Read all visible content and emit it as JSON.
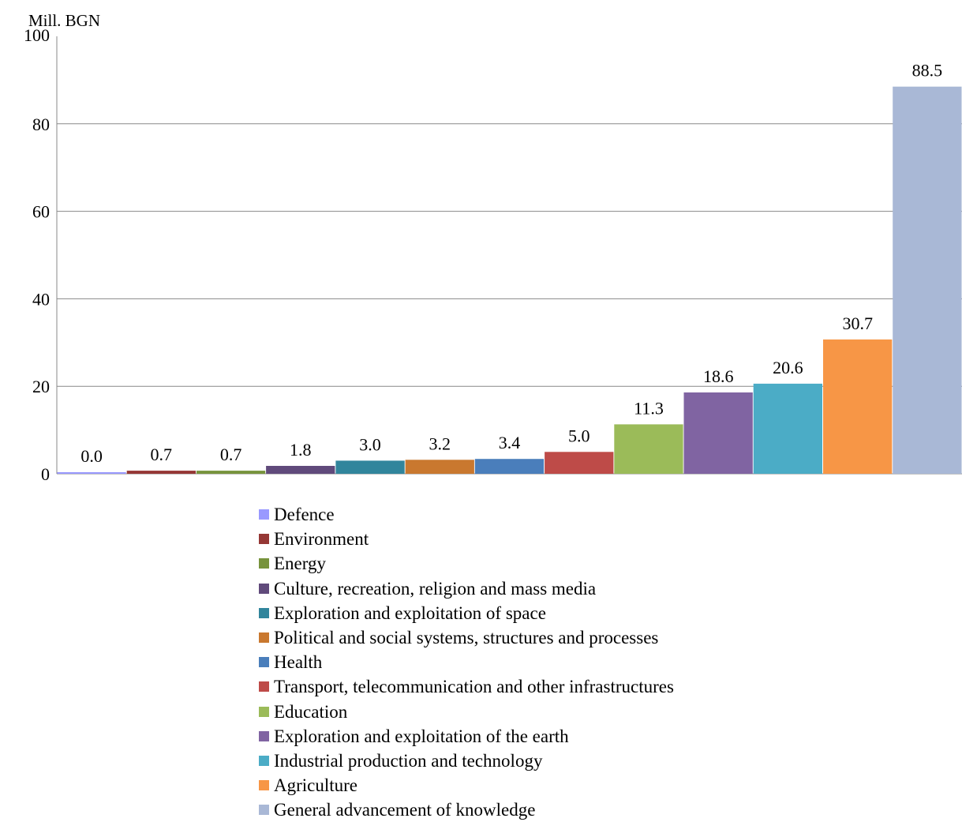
{
  "chart_data": {
    "type": "bar",
    "ylabel": "Mill. BGN",
    "ylim": [
      0,
      100
    ],
    "yticks": [
      0,
      20,
      40,
      60,
      80,
      100
    ],
    "grid": true,
    "legend_position": "bottom",
    "categories": [
      "Defence",
      "Environment",
      "Energy",
      "Culture, recreation, religion and mass media",
      "Exploration and exploitation of space",
      "Political and social systems, structures and processes",
      "Health",
      "Transport, telecommunication and other infrastructures",
      "Education",
      "Exploration and exploitation of the earth",
      "Industrial production and technology",
      "Agriculture",
      "General advancement of knowledge"
    ],
    "values": [
      0.0,
      0.7,
      0.7,
      1.8,
      3.0,
      3.2,
      3.4,
      5.0,
      11.3,
      18.6,
      20.6,
      30.7,
      88.5
    ],
    "labels": [
      "0.0",
      "0.7",
      "0.7",
      "1.8",
      "3.0",
      "3.2",
      "3.4",
      "5.0",
      "11.3",
      "18.6",
      "20.6",
      "30.7",
      "88.5"
    ],
    "colors": [
      "#9999ff",
      "#953735",
      "#77933c",
      "#604a7b",
      "#31859c",
      "#c9782f",
      "#4a7ebb",
      "#be4b48",
      "#9bbb59",
      "#8064a2",
      "#4bacc6",
      "#f79646",
      "#a9b8d6"
    ]
  }
}
